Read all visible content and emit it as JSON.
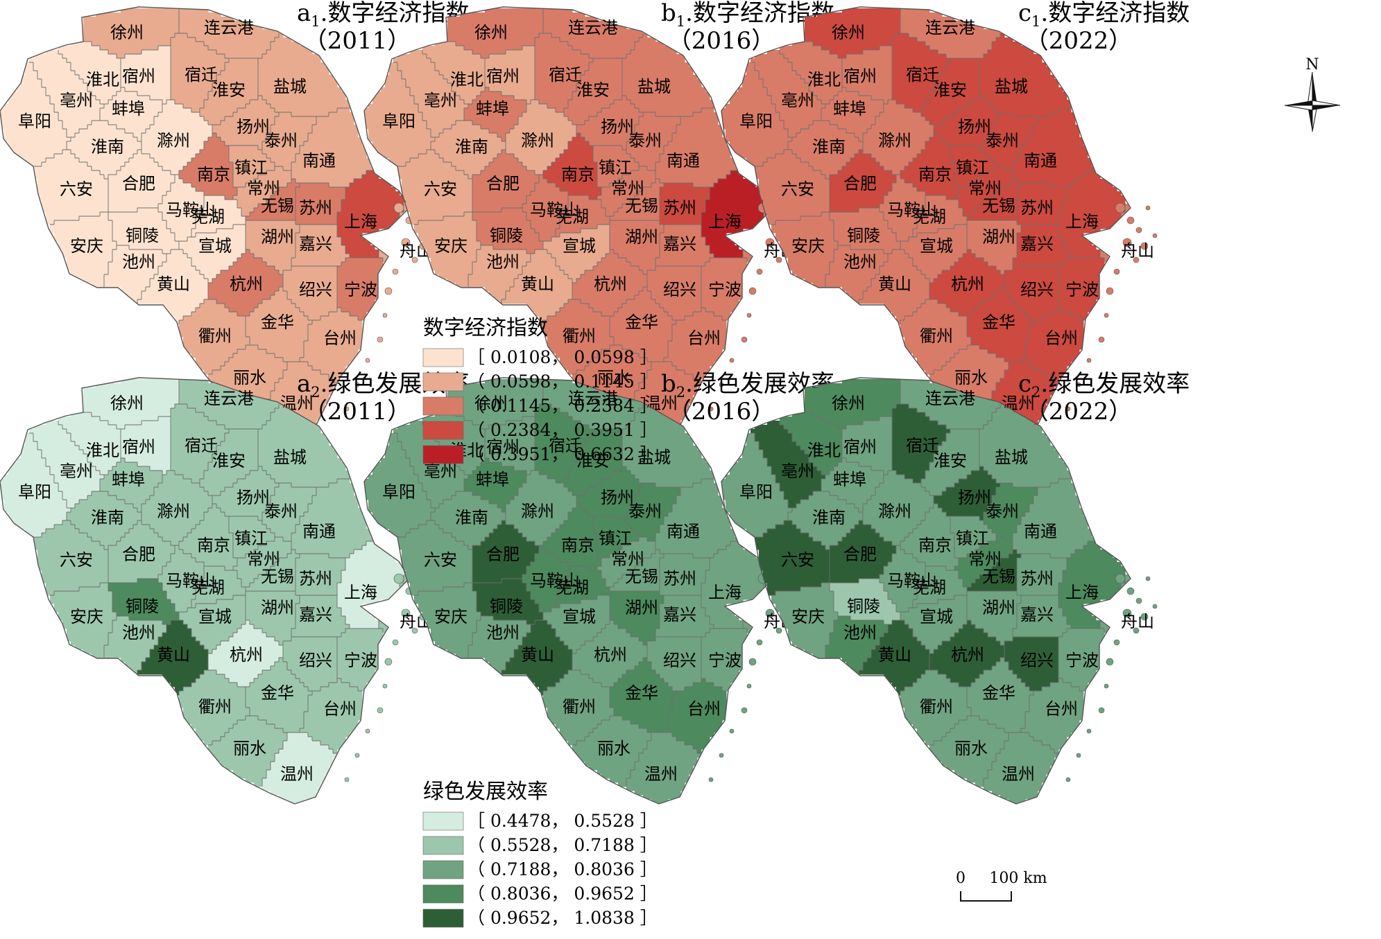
{
  "legends": {
    "digital": {
      "title": "数字经济指数",
      "classes": [
        {
          "label": "［ 0.0108， 0.0598 ］",
          "color": "#fde3cf"
        },
        {
          "label": "（ 0.0598， 0.1145 ］",
          "color": "#e8ab8f"
        },
        {
          "label": "（ 0.1145， 0.2384 ］",
          "color": "#d87c68"
        },
        {
          "label": "（ 0.2384， 0.3951 ］",
          "color": "#cc4a3f"
        },
        {
          "label": "（ 0.3951， 0.6632 ］",
          "color": "#bb1f26"
        }
      ]
    },
    "green": {
      "title": "绿色发展效率",
      "classes": [
        {
          "label": "［ 0.4478， 0.5528 ］",
          "color": "#d5ede0"
        },
        {
          "label": "（ 0.5528， 0.7188 ］",
          "color": "#9cc7ac"
        },
        {
          "label": "（ 0.7188， 0.8036 ］",
          "color": "#70a381"
        },
        {
          "label": "（ 0.8036， 0.9652 ］",
          "color": "#4d8a5d"
        },
        {
          "label": "（ 0.9652， 1.0838 ］",
          "color": "#2e5e36"
        }
      ]
    }
  },
  "panels": [
    {
      "id": "a1",
      "title_letter": "a",
      "title_sub": "1",
      "title_rest": ".数字经济指数",
      "year": "（2011）",
      "scheme": "digital",
      "classes": {
        "徐州": 1,
        "连云港": 1,
        "宿迁": 1,
        "淮北": 0,
        "宿州": 0,
        "亳州": 0,
        "阜阳": 0,
        "蚌埠": 0,
        "淮安": 1,
        "盐城": 1,
        "扬州": 1,
        "泰州": 1,
        "淮南": 0,
        "滁州": 0,
        "南京": 2,
        "镇江": 1,
        "南通": 1,
        "六安": 0,
        "合肥": 0,
        "马鞍山": 0,
        "常州": 1,
        "无锡": 2,
        "苏州": 2,
        "上海": 3,
        "芜湖": 0,
        "铜陵": 0,
        "安庆": 0,
        "池州": 0,
        "宣城": 0,
        "湖州": 1,
        "嘉兴": 1,
        "舟山": 1,
        "黄山": 0,
        "杭州": 2,
        "绍兴": 1,
        "宁波": 2,
        "衢州": 1,
        "金华": 1,
        "台州": 1,
        "丽水": 1,
        "温州": 1
      }
    },
    {
      "id": "b1",
      "title_letter": "b",
      "title_sub": "1",
      "title_rest": ".数字经济指数",
      "year": "（2016）",
      "scheme": "digital",
      "classes": {
        "徐州": 2,
        "连云港": 2,
        "宿迁": 2,
        "淮北": 1,
        "宿州": 1,
        "亳州": 1,
        "阜阳": 1,
        "蚌埠": 2,
        "淮安": 2,
        "盐城": 2,
        "扬州": 2,
        "泰州": 2,
        "淮南": 1,
        "滁州": 1,
        "南京": 3,
        "镇江": 2,
        "南通": 2,
        "六安": 1,
        "合肥": 2,
        "马鞍山": 2,
        "常州": 2,
        "无锡": 2,
        "苏州": 3,
        "上海": 4,
        "芜湖": 2,
        "铜陵": 2,
        "安庆": 1,
        "池州": 1,
        "宣城": 1,
        "湖州": 2,
        "嘉兴": 2,
        "舟山": 2,
        "黄山": 1,
        "杭州": 2,
        "绍兴": 2,
        "宁波": 2,
        "衢州": 2,
        "金华": 2,
        "台州": 2,
        "丽水": 2,
        "温州": 2
      }
    },
    {
      "id": "c1",
      "title_letter": "c",
      "title_sub": "1",
      "title_rest": ".数字经济指数",
      "year": "（2022）",
      "scheme": "digital",
      "classes": {
        "徐州": 3,
        "连云港": 2,
        "宿迁": 3,
        "淮北": 2,
        "宿州": 2,
        "亳州": 2,
        "阜阳": 2,
        "蚌埠": 2,
        "淮安": 3,
        "盐城": 3,
        "扬州": 3,
        "泰州": 3,
        "淮南": 2,
        "滁州": 2,
        "南京": 3,
        "镇江": 3,
        "南通": 3,
        "六安": 2,
        "合肥": 3,
        "马鞍山": 2,
        "常州": 3,
        "无锡": 3,
        "苏州": 3,
        "上海": 3,
        "芜湖": 2,
        "铜陵": 2,
        "安庆": 2,
        "池州": 2,
        "宣城": 2,
        "湖州": 2,
        "嘉兴": 3,
        "舟山": 2,
        "黄山": 2,
        "杭州": 3,
        "绍兴": 3,
        "宁波": 3,
        "衢州": 2,
        "金华": 3,
        "台州": 3,
        "丽水": 2,
        "温州": 3
      }
    },
    {
      "id": "a2",
      "title_letter": "a",
      "title_sub": "2",
      "title_rest": ".绿色发展效率",
      "year": "（2011）",
      "scheme": "green",
      "classes": {
        "徐州": 0,
        "连云港": 1,
        "宿迁": 1,
        "淮北": 0,
        "宿州": 0,
        "亳州": 0,
        "阜阳": 0,
        "蚌埠": 1,
        "淮安": 1,
        "盐城": 1,
        "扬州": 1,
        "泰州": 1,
        "淮南": 1,
        "滁州": 1,
        "南京": 1,
        "镇江": 1,
        "南通": 1,
        "六安": 1,
        "合肥": 1,
        "马鞍山": 1,
        "常州": 1,
        "无锡": 1,
        "苏州": 1,
        "上海": 0,
        "芜湖": 1,
        "铜陵": 3,
        "安庆": 1,
        "池州": 1,
        "宣城": 1,
        "湖州": 1,
        "嘉兴": 1,
        "舟山": 1,
        "黄山": 4,
        "杭州": 0,
        "绍兴": 1,
        "宁波": 1,
        "衢州": 1,
        "金华": 1,
        "台州": 1,
        "丽水": 1,
        "温州": 0
      }
    },
    {
      "id": "b2",
      "title_letter": "b",
      "title_sub": "2",
      "title_rest": ".绿色发展效率",
      "year": "（2016）",
      "scheme": "green",
      "classes": {
        "徐州": 2,
        "连云港": 2,
        "宿迁": 3,
        "淮北": 2,
        "宿州": 2,
        "亳州": 2,
        "阜阳": 2,
        "蚌埠": 3,
        "淮安": 3,
        "盐城": 2,
        "扬州": 3,
        "泰州": 3,
        "淮南": 2,
        "滁州": 2,
        "南京": 3,
        "镇江": 3,
        "南通": 2,
        "六安": 2,
        "合肥": 4,
        "马鞍山": 3,
        "常州": 2,
        "无锡": 2,
        "苏州": 2,
        "上海": 2,
        "芜湖": 3,
        "铜陵": 4,
        "安庆": 2,
        "池州": 2,
        "宣城": 2,
        "湖州": 3,
        "嘉兴": 2,
        "舟山": 2,
        "黄山": 4,
        "杭州": 2,
        "绍兴": 2,
        "宁波": 2,
        "衢州": 2,
        "金华": 3,
        "台州": 3,
        "丽水": 2,
        "温州": 2
      }
    },
    {
      "id": "c2",
      "title_letter": "c",
      "title_sub": "2",
      "title_rest": ".绿色发展效率",
      "year": "（2022）",
      "scheme": "green",
      "classes": {
        "徐州": 3,
        "连云港": 2,
        "宿迁": 4,
        "淮北": 3,
        "宿州": 2,
        "亳州": 4,
        "阜阳": 2,
        "蚌埠": 2,
        "淮安": 2,
        "盐城": 2,
        "扬州": 4,
        "泰州": 3,
        "淮南": 2,
        "滁州": 2,
        "南京": 2,
        "镇江": 2,
        "南通": 2,
        "六安": 4,
        "合肥": 4,
        "马鞍山": 2,
        "常州": 3,
        "无锡": 4,
        "苏州": 2,
        "上海": 3,
        "芜湖": 2,
        "铜陵": 1,
        "安庆": 2,
        "池州": 3,
        "宣城": 2,
        "湖州": 2,
        "嘉兴": 2,
        "舟山": 2,
        "黄山": 4,
        "杭州": 4,
        "绍兴": 4,
        "宁波": 2,
        "衢州": 2,
        "金华": 2,
        "台州": 2,
        "丽水": 2,
        "温州": 2
      }
    }
  ],
  "compass": {
    "north_label": "N"
  },
  "scale_bar": {
    "start_label": "0",
    "end_label": "100 km"
  }
}
